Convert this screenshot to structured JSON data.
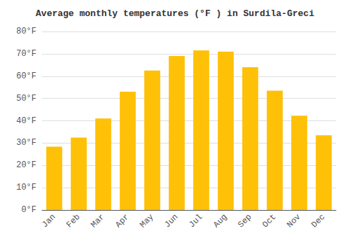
{
  "chart_data": {
    "type": "bar",
    "title": "Average monthly temperatures (°F ) in Surdila-Greci",
    "categories": [
      "Jan",
      "Feb",
      "Mar",
      "Apr",
      "May",
      "Jun",
      "Jul",
      "Aug",
      "Sep",
      "Oct",
      "Nov",
      "Dec"
    ],
    "values": [
      28.4,
      32.5,
      41.0,
      53.0,
      62.5,
      69.0,
      71.5,
      71.0,
      64.0,
      53.5,
      42.3,
      33.5
    ],
    "color": "#FFC107",
    "ylim": [
      0,
      80
    ],
    "yticks": [
      {
        "value": 0,
        "label": "0°F"
      },
      {
        "value": 10,
        "label": "10°F"
      },
      {
        "value": 20,
        "label": "20°F"
      },
      {
        "value": 30,
        "label": "30°F"
      },
      {
        "value": 40,
        "label": "40°F"
      },
      {
        "value": 50,
        "label": "50°F"
      },
      {
        "value": 60,
        "label": "60°F"
      },
      {
        "value": 70,
        "label": "70°F"
      },
      {
        "value": 80,
        "label": "80°F"
      }
    ],
    "grid": true
  }
}
